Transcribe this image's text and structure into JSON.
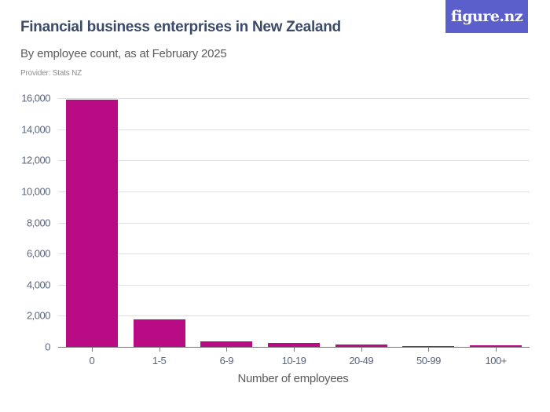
{
  "header": {
    "title": "Financial business enterprises in New Zealand",
    "subtitle": "By employee count, as at February 2025",
    "provider": "Provider: Stats NZ",
    "logo": "figure.nz"
  },
  "colors": {
    "bar": "#b80b84",
    "logo_bg": "#5a5fcb",
    "title": "#3c4a69"
  },
  "chart_data": {
    "type": "bar",
    "title": "Financial business enterprises in New Zealand",
    "subtitle": "By employee count, as at February 2025",
    "xlabel": "Number of employees",
    "ylabel": "",
    "categories": [
      "0",
      "1-5",
      "6-9",
      "10-19",
      "20-49",
      "50-99",
      "100+"
    ],
    "values": [
      15900,
      1770,
      350,
      230,
      150,
      60,
      100
    ],
    "ylim": [
      0,
      16000
    ],
    "yticks": [
      0,
      2000,
      4000,
      6000,
      8000,
      10000,
      12000,
      14000,
      16000
    ],
    "ytick_labels": [
      "0",
      "2,000",
      "4,000",
      "6,000",
      "8,000",
      "10,000",
      "12,000",
      "14,000",
      "16,000"
    ],
    "grid": true,
    "legend": null
  }
}
